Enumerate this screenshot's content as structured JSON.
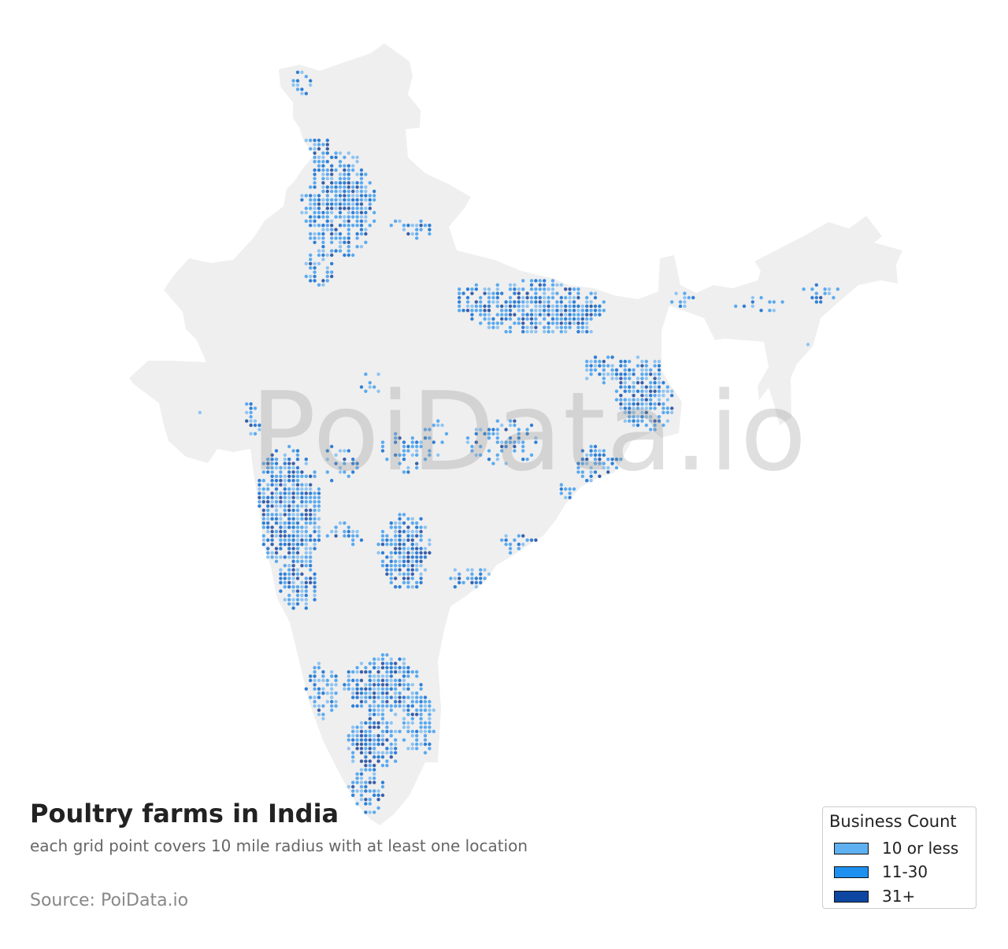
{
  "map": {
    "title": "Poultry farms in India",
    "subtitle": "each grid point covers 10 mile radius with at least one location",
    "source": "Source: PoiData.io",
    "watermark": "PoiData.io",
    "country_fill": "#efefef",
    "bin_colors": [
      "#8fc4f2",
      "#5aaaf0",
      "#2f7fd6",
      "#3a5fa8"
    ],
    "legend": {
      "title": "Business Count",
      "items": [
        {
          "label": "10 or less",
          "color": "#5eb0f0"
        },
        {
          "label": "11-30",
          "color": "#1e90f0"
        },
        {
          "label": "31+",
          "color": "#0d47a1"
        }
      ]
    }
  }
}
